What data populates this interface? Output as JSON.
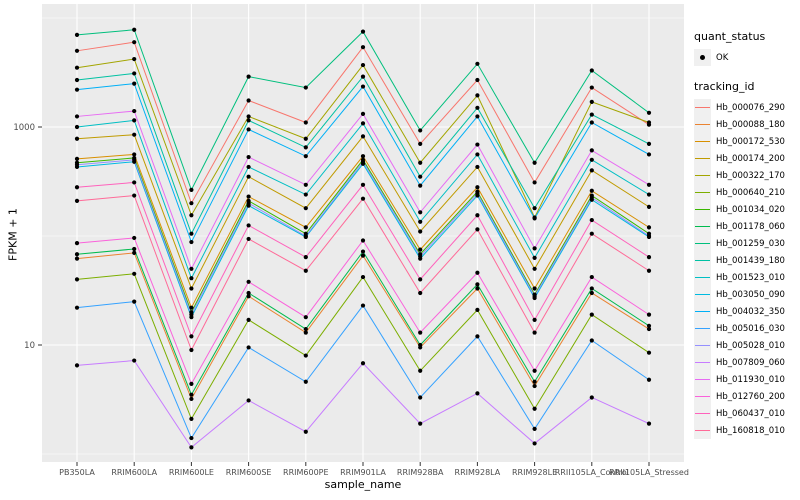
{
  "figure": {
    "background": "#ffffff",
    "panel_background": "#EBEBEB",
    "grid_color": "#FFFFFF",
    "tick_text_color": "#4D4D4D",
    "point_color": "#000000",
    "y_axis_title": "FPKM + 1",
    "x_axis_title": "sample_name"
  },
  "legend": {
    "quant_title": "quant_status",
    "quant_items": [
      {
        "label": "OK",
        "marker": "black-point"
      }
    ],
    "tracking_title": "tracking_id"
  },
  "chart_data": {
    "type": "line",
    "title": "",
    "xlabel": "sample_name",
    "ylabel": "FPKM + 1",
    "y_scale": "log10",
    "ylim": [
      1,
      10000
    ],
    "y_major_breaks": [
      10,
      1000
    ],
    "y_tick_labels": [
      "10",
      "1000"
    ],
    "y_minor_breaks": [
      1,
      100,
      10000
    ],
    "grid": true,
    "legend_position": "right",
    "marker": "point",
    "marker_color": "#000000",
    "categories": [
      "PB350LA",
      "RRIM600LA",
      "RRIM600LE",
      "RRIM600SE",
      "RRIM600PE",
      "RRIM901LA",
      "RRIM928BA",
      "RRIM928LA",
      "RRIM928LE",
      "RRII105LA_Control",
      "RRII105LA_Stressed"
    ],
    "series": [
      {
        "name": "Hb_000076_290",
        "color": "#F8766D",
        "values": [
          5000,
          6000,
          200,
          1750,
          1100,
          5400,
          700,
          2700,
          310,
          2300,
          1050
        ]
      },
      {
        "name": "Hb_000088_180",
        "color": "#EA8331",
        "values": [
          62,
          70,
          3.2,
          28,
          13,
          66,
          9.5,
          33,
          4.2,
          30,
          14
        ]
      },
      {
        "name": "Hb_000172_530",
        "color": "#D89000",
        "values": [
          510,
          560,
          22,
          230,
          120,
          540,
          75,
          280,
          33,
          260,
          120
        ]
      },
      {
        "name": "Hb_000174_200",
        "color": "#C09B00",
        "values": [
          780,
          850,
          33,
          350,
          180,
          820,
          110,
          430,
          50,
          400,
          185
        ]
      },
      {
        "name": "Hb_000322_170",
        "color": "#A3A500",
        "values": [
          3500,
          4200,
          155,
          1250,
          780,
          3700,
          470,
          1950,
          148,
          1700,
          1100
        ]
      },
      {
        "name": "Hb_000640_210",
        "color": "#7CAE00",
        "values": [
          40,
          45,
          2.1,
          17,
          8,
          42,
          5.8,
          21,
          2.6,
          19,
          8.5
        ]
      },
      {
        "name": "Hb_001034_020",
        "color": "#39B600",
        "values": [
          470,
          520,
          20,
          210,
          105,
          500,
          68,
          255,
          29,
          235,
          105
        ]
      },
      {
        "name": "Hb_001178_060",
        "color": "#00BB4E",
        "values": [
          68,
          76,
          3.5,
          30,
          14,
          72,
          10,
          36,
          4.6,
          33,
          15
        ]
      },
      {
        "name": "Hb_001259_030",
        "color": "#00BF7D",
        "values": [
          7000,
          7800,
          265,
          2900,
          2300,
          7500,
          930,
          3800,
          470,
          3300,
          1350
        ]
      },
      {
        "name": "Hb_001439_180",
        "color": "#00C1A3",
        "values": [
          2700,
          3100,
          105,
          1150,
          650,
          2900,
          350,
          1500,
          180,
          1300,
          700
        ]
      },
      {
        "name": "Hb_001523_010",
        "color": "#00BFC4",
        "values": [
          1000,
          1150,
          41,
          430,
          240,
          1080,
          135,
          560,
          63,
          500,
          240
        ]
      },
      {
        "name": "Hb_003050_090",
        "color": "#00BAE0",
        "values": [
          430,
          480,
          18,
          190,
          98,
          460,
          62,
          235,
          27,
          215,
          98
        ]
      },
      {
        "name": "Hb_004032_350",
        "color": "#00B0F6",
        "values": [
          2200,
          2500,
          88,
          950,
          540,
          2350,
          290,
          1250,
          145,
          1100,
          560
        ]
      },
      {
        "name": "Hb_005016_030",
        "color": "#35A2FF",
        "values": [
          22,
          25,
          1.4,
          9.5,
          4.6,
          23,
          3.3,
          12,
          1.7,
          11,
          4.8
        ]
      },
      {
        "name": "Hb_005028_010",
        "color": "#9590FF",
        "values": [
          450,
          500,
          19,
          200,
          100,
          480,
          65,
          245,
          28,
          225,
          100
        ]
      },
      {
        "name": "Hb_007809_060",
        "color": "#C77CFF",
        "values": [
          6.5,
          7.2,
          1.15,
          3.1,
          1.6,
          6.8,
          1.9,
          3.6,
          1.25,
          3.3,
          1.9
        ]
      },
      {
        "name": "Hb_011930_010",
        "color": "#E76BF3",
        "values": [
          1250,
          1400,
          50,
          530,
          295,
          1320,
          165,
          690,
          77,
          610,
          295
        ]
      },
      {
        "name": "Hb_012760_200",
        "color": "#FA62DB",
        "values": [
          86,
          96,
          4.4,
          38,
          18,
          91,
          13,
          46,
          5.8,
          42,
          19
        ]
      },
      {
        "name": "Hb_060437_010",
        "color": "#FF62BC",
        "values": [
          280,
          310,
          12,
          125,
          64,
          295,
          40,
          155,
          17,
          140,
          64
        ]
      },
      {
        "name": "Hb_160818_010",
        "color": "#FF6A98",
        "values": [
          210,
          235,
          9,
          94,
          48,
          220,
          30,
          115,
          13,
          105,
          48
        ]
      }
    ]
  }
}
